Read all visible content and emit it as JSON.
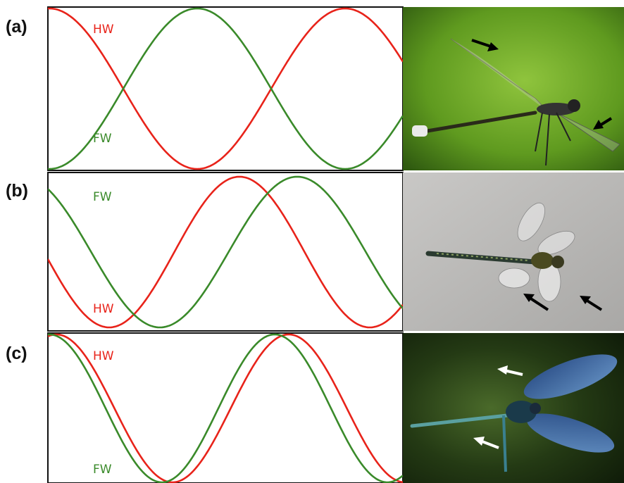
{
  "panels": [
    {
      "label": "(a)",
      "curve_labels": [
        "HW",
        "FW"
      ]
    },
    {
      "label": "(b)",
      "curve_labels": [
        "FW",
        "HW"
      ]
    },
    {
      "label": "(c)",
      "curve_labels": [
        "HW",
        "FW"
      ]
    }
  ]
}
